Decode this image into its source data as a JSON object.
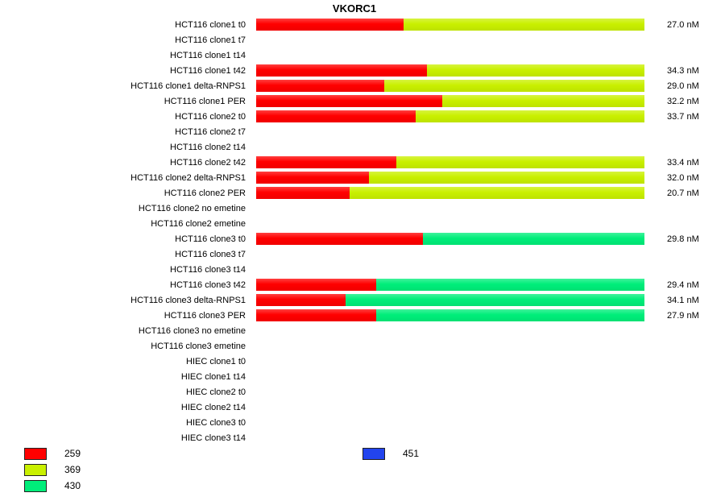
{
  "chart_data": {
    "type": "bar",
    "orientation": "horizontal",
    "title": "VKORC1",
    "value_unit": "nM",
    "grid": false,
    "colors": {
      "259": "#ff0000",
      "369": "#c9f000",
      "430": "#00ee7a",
      "451": "#2244ee"
    },
    "legend_left": [
      {
        "label": "259",
        "color": "#ff0000"
      },
      {
        "label": "369",
        "color": "#c9f000"
      },
      {
        "label": "430",
        "color": "#00ee7a"
      }
    ],
    "legend_right": [
      {
        "label": "451",
        "color": "#2244ee"
      }
    ],
    "rows": [
      {
        "label": "HCT116 clone1 t0",
        "value": "27.0 nM",
        "segments": [
          {
            "key": "259",
            "frac": 0.38
          },
          {
            "key": "369",
            "frac": 0.62
          }
        ]
      },
      {
        "label": "HCT116 clone1 t7",
        "value": "",
        "segments": []
      },
      {
        "label": "HCT116 clone1 t14",
        "value": "",
        "segments": []
      },
      {
        "label": "HCT116 clone1 t42",
        "value": "34.3 nM",
        "segments": [
          {
            "key": "259",
            "frac": 0.44
          },
          {
            "key": "369",
            "frac": 0.56
          }
        ]
      },
      {
        "label": "HCT116 clone1 delta-RNPS1",
        "value": "29.0 nM",
        "segments": [
          {
            "key": "259",
            "frac": 0.33
          },
          {
            "key": "369",
            "frac": 0.67
          }
        ]
      },
      {
        "label": "HCT116 clone1 PER",
        "value": "32.2 nM",
        "segments": [
          {
            "key": "259",
            "frac": 0.48
          },
          {
            "key": "369",
            "frac": 0.52
          }
        ]
      },
      {
        "label": "HCT116 clone2 t0",
        "value": "33.7 nM",
        "segments": [
          {
            "key": "259",
            "frac": 0.41
          },
          {
            "key": "369",
            "frac": 0.59
          }
        ]
      },
      {
        "label": "HCT116 clone2 t7",
        "value": "",
        "segments": []
      },
      {
        "label": "HCT116 clone2 t14",
        "value": "",
        "segments": []
      },
      {
        "label": "HCT116 clone2 t42",
        "value": "33.4 nM",
        "segments": [
          {
            "key": "259",
            "frac": 0.36
          },
          {
            "key": "369",
            "frac": 0.64
          }
        ]
      },
      {
        "label": "HCT116 clone2 delta-RNPS1",
        "value": "32.0 nM",
        "segments": [
          {
            "key": "259",
            "frac": 0.29
          },
          {
            "key": "369",
            "frac": 0.71
          }
        ]
      },
      {
        "label": "HCT116 clone2 PER",
        "value": "20.7 nM",
        "segments": [
          {
            "key": "259",
            "frac": 0.24
          },
          {
            "key": "369",
            "frac": 0.76
          }
        ]
      },
      {
        "label": "HCT116 clone2 no emetine",
        "value": "",
        "segments": []
      },
      {
        "label": "HCT116 clone2 emetine",
        "value": "",
        "segments": []
      },
      {
        "label": "HCT116 clone3 t0",
        "value": "29.8 nM",
        "segments": [
          {
            "key": "259",
            "frac": 0.43
          },
          {
            "key": "430",
            "frac": 0.57
          }
        ]
      },
      {
        "label": "HCT116 clone3 t7",
        "value": "",
        "segments": []
      },
      {
        "label": "HCT116 clone3 t14",
        "value": "",
        "segments": []
      },
      {
        "label": "HCT116 clone3 t42",
        "value": "29.4 nM",
        "segments": [
          {
            "key": "259",
            "frac": 0.31
          },
          {
            "key": "430",
            "frac": 0.69
          }
        ]
      },
      {
        "label": "HCT116 clone3 delta-RNPS1",
        "value": "34.1 nM",
        "segments": [
          {
            "key": "259",
            "frac": 0.23
          },
          {
            "key": "430",
            "frac": 0.77
          }
        ]
      },
      {
        "label": "HCT116 clone3 PER",
        "value": "27.9 nM",
        "segments": [
          {
            "key": "259",
            "frac": 0.31
          },
          {
            "key": "430",
            "frac": 0.69
          }
        ]
      },
      {
        "label": "HCT116 clone3 no emetine",
        "value": "",
        "segments": []
      },
      {
        "label": "HCT116 clone3 emetine",
        "value": "",
        "segments": []
      },
      {
        "label": "HIEC clone1 t0",
        "value": "",
        "segments": []
      },
      {
        "label": "HIEC clone1 t14",
        "value": "",
        "segments": []
      },
      {
        "label": "HIEC clone2 t0",
        "value": "",
        "segments": []
      },
      {
        "label": "HIEC clone2 t14",
        "value": "",
        "segments": []
      },
      {
        "label": "HIEC clone3 t0",
        "value": "",
        "segments": []
      },
      {
        "label": "HIEC clone3 t14",
        "value": "",
        "segments": []
      }
    ]
  }
}
